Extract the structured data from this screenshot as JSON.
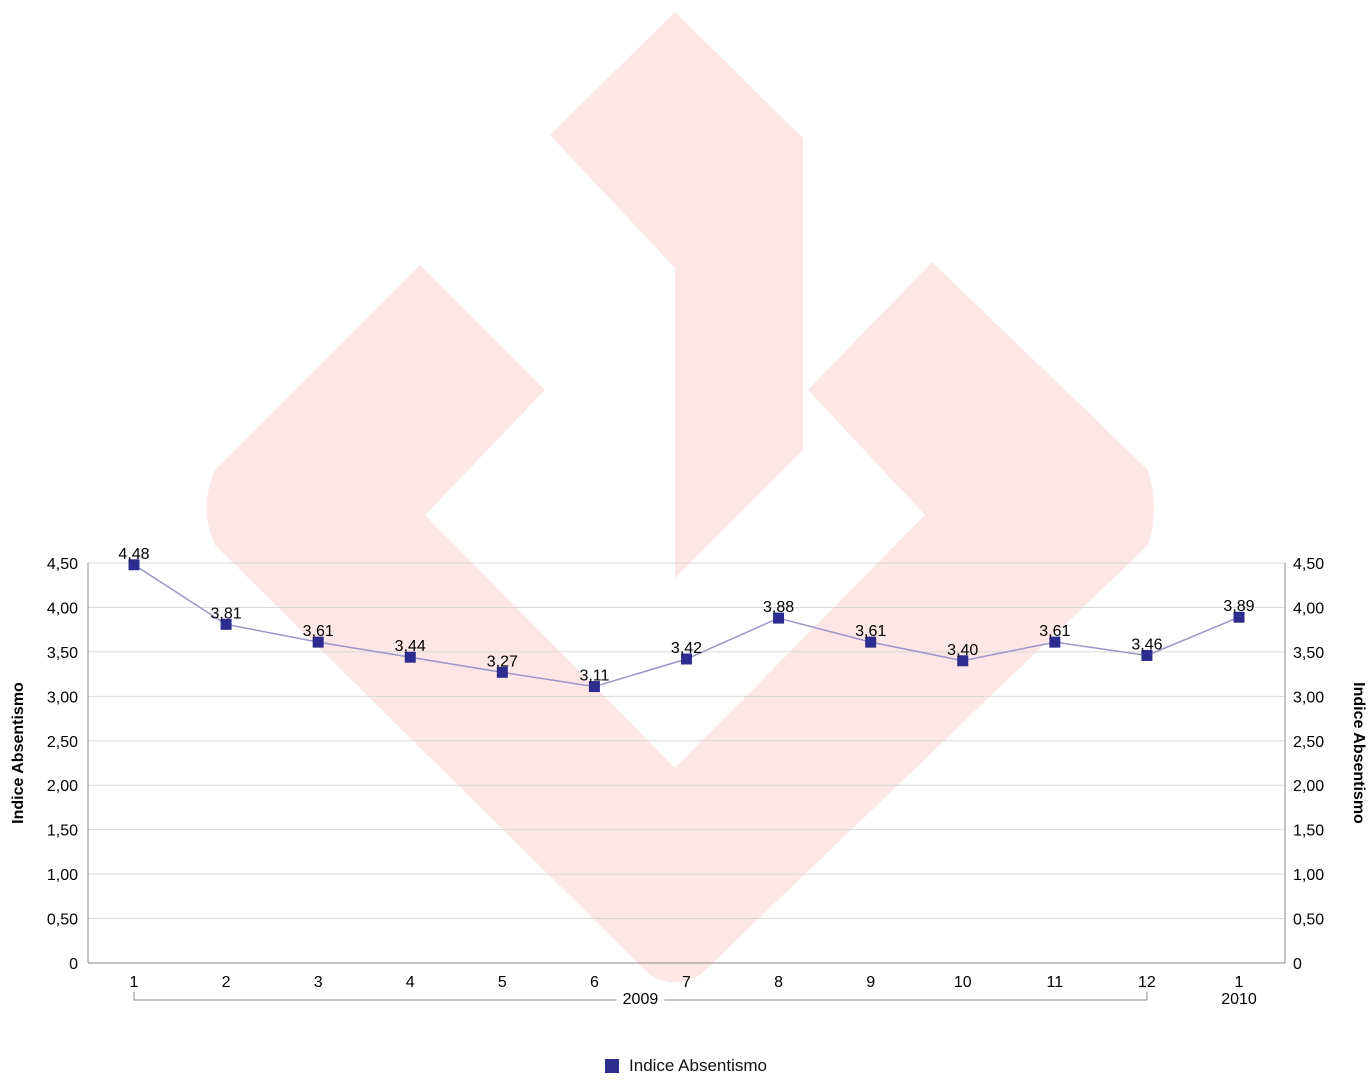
{
  "chart_data": {
    "type": "line",
    "categories": [
      "1",
      "2",
      "3",
      "4",
      "5",
      "6",
      "7",
      "8",
      "9",
      "10",
      "11",
      "12",
      "1"
    ],
    "groups": [
      {
        "label": "2009",
        "from": 0,
        "to": 11
      },
      {
        "label": "2010",
        "from": 12,
        "to": 12
      }
    ],
    "series": [
      {
        "name": "Indice Absentismo",
        "values": [
          4.48,
          3.81,
          3.61,
          3.44,
          3.27,
          3.11,
          3.42,
          3.88,
          3.61,
          3.4,
          3.61,
          3.46,
          3.89
        ],
        "value_labels": [
          "4,48",
          "3,81",
          "3,61",
          "3,44",
          "3,27",
          "3,11",
          "3,42",
          "3,88",
          "3,61",
          "3,40",
          "3,61",
          "3,46",
          "3,89"
        ]
      }
    ],
    "ylabel": "Indice Absentismo",
    "ylabel_right": "Indice Absentismo",
    "ylim": [
      0,
      4.5
    ],
    "yticks": [
      "0",
      "0,50",
      "1,00",
      "1,50",
      "2,00",
      "2,50",
      "3,00",
      "3,50",
      "4,00",
      "4,50"
    ],
    "grid": true,
    "legend_position": "bottom-center"
  },
  "colors": {
    "marker": "#2d2d8f",
    "line": "#9a95c8",
    "grid": "#d8d8d8",
    "axis": "#888888",
    "watermark": "#fde6e6"
  },
  "watermark": {
    "icon": "logo-watermark"
  }
}
